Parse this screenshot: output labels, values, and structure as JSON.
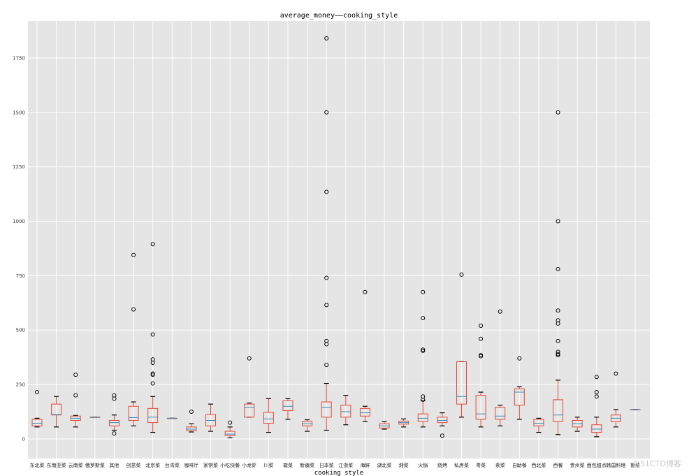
{
  "chart_data": {
    "type": "boxplot",
    "title": "average_money——cooking_style",
    "xlabel": "cooking style",
    "ylabel": "",
    "ylim": [
      -90,
      1920
    ],
    "yticks": [
      0,
      250,
      500,
      750,
      1000,
      1250,
      1500,
      1750
    ],
    "grid": true,
    "colors": {
      "background": "#e5e5e5",
      "grid": "#ffffff",
      "box": "#e24a33",
      "median": "#348abd",
      "whisker": "#000000",
      "flier": "#000000"
    },
    "categories": [
      "东北菜",
      "东南亚菜",
      "云南菜",
      "俄罗斯菜",
      "其他",
      "创意菜",
      "北京菜",
      "台湾菜",
      "咖啡厅",
      "家常菜",
      "小吃快餐",
      "小龙虾",
      "川菜",
      "徽菜",
      "新疆菜",
      "日本菜",
      "江浙菜",
      "海鲜",
      "湖北菜",
      "湘菜",
      "火锅",
      "烧烤",
      "私房菜",
      "粤菜",
      "素菜",
      "自助餐",
      "西北菜",
      "西餐",
      "贵州菜",
      "面包甜点",
      "韩国料理",
      "鲁菜"
    ],
    "boxes": [
      {
        "q1": 60,
        "median": 72,
        "q3": 90,
        "low": 55,
        "high": 95,
        "fliers": [
          215
        ]
      },
      {
        "q1": 110,
        "median": 112,
        "q3": 160,
        "low": 55,
        "high": 195,
        "fliers": []
      },
      {
        "q1": 85,
        "median": 95,
        "q3": 105,
        "low": 55,
        "high": 108,
        "fliers": [
          200,
          295
        ]
      },
      {
        "q1": 100,
        "median": 100,
        "q3": 100,
        "low": 100,
        "high": 100,
        "fliers": []
      },
      {
        "q1": 60,
        "median": 75,
        "q3": 85,
        "low": 40,
        "high": 110,
        "fliers": [
          25,
          185,
          200
        ]
      },
      {
        "q1": 85,
        "median": 98,
        "q3": 150,
        "low": 60,
        "high": 170,
        "fliers": [
          595,
          845
        ]
      },
      {
        "q1": 75,
        "median": 100,
        "q3": 140,
        "low": 30,
        "high": 195,
        "fliers": [
          255,
          295,
          300,
          350,
          365,
          480,
          895
        ]
      },
      {
        "q1": 95,
        "median": 95,
        "q3": 95,
        "low": 95,
        "high": 95,
        "fliers": []
      },
      {
        "q1": 38,
        "median": 45,
        "q3": 55,
        "low": 32,
        "high": 70,
        "fliers": [
          125
        ]
      },
      {
        "q1": 60,
        "median": 85,
        "q3": 112,
        "low": 35,
        "high": 160,
        "fliers": []
      },
      {
        "q1": 15,
        "median": 22,
        "q3": 35,
        "low": 5,
        "high": 55,
        "fliers": [
          75
        ]
      },
      {
        "q1": 100,
        "median": 145,
        "q3": 160,
        "low": 100,
        "high": 165,
        "fliers": [
          370
        ]
      },
      {
        "q1": 72,
        "median": 92,
        "q3": 122,
        "low": 30,
        "high": 185,
        "fliers": []
      },
      {
        "q1": 130,
        "median": 150,
        "q3": 175,
        "low": 90,
        "high": 185,
        "fliers": []
      },
      {
        "q1": 60,
        "median": 70,
        "q3": 80,
        "low": 35,
        "high": 88,
        "fliers": []
      },
      {
        "q1": 100,
        "median": 145,
        "q3": 170,
        "low": 40,
        "high": 255,
        "fliers": [
          340,
          435,
          450,
          615,
          740,
          1135,
          1500,
          1840
        ]
      },
      {
        "q1": 100,
        "median": 125,
        "q3": 155,
        "low": 65,
        "high": 200,
        "fliers": []
      },
      {
        "q1": 105,
        "median": 120,
        "q3": 140,
        "low": 80,
        "high": 150,
        "fliers": [
          675
        ]
      },
      {
        "q1": 50,
        "median": 60,
        "q3": 70,
        "low": 45,
        "high": 80,
        "fliers": []
      },
      {
        "q1": 68,
        "median": 75,
        "q3": 82,
        "low": 55,
        "high": 92,
        "fliers": []
      },
      {
        "q1": 80,
        "median": 95,
        "q3": 115,
        "low": 55,
        "high": 175,
        "fliers": [
          180,
          195,
          405,
          410,
          555,
          675
        ]
      },
      {
        "q1": 75,
        "median": 85,
        "q3": 100,
        "low": 60,
        "high": 120,
        "fliers": [
          15
        ]
      },
      {
        "q1": 160,
        "median": 195,
        "q3": 355,
        "low": 100,
        "high": 355,
        "fliers": [
          755
        ]
      },
      {
        "q1": 90,
        "median": 115,
        "q3": 200,
        "low": 55,
        "high": 215,
        "fliers": [
          380,
          385,
          460,
          520
        ]
      },
      {
        "q1": 90,
        "median": 105,
        "q3": 145,
        "low": 60,
        "high": 155,
        "fliers": [
          585
        ]
      },
      {
        "q1": 155,
        "median": 215,
        "q3": 230,
        "low": 90,
        "high": 240,
        "fliers": [
          370
        ]
      },
      {
        "q1": 60,
        "median": 72,
        "q3": 90,
        "low": 30,
        "high": 95,
        "fliers": []
      },
      {
        "q1": 80,
        "median": 110,
        "q3": 180,
        "low": 20,
        "high": 270,
        "fliers": [
          385,
          390,
          400,
          450,
          530,
          545,
          590,
          780,
          1000,
          1500
        ]
      },
      {
        "q1": 55,
        "median": 70,
        "q3": 85,
        "low": 35,
        "high": 100,
        "fliers": []
      },
      {
        "q1": 30,
        "median": 45,
        "q3": 65,
        "low": 10,
        "high": 100,
        "fliers": [
          195,
          215,
          285
        ]
      },
      {
        "q1": 80,
        "median": 95,
        "q3": 110,
        "low": 55,
        "high": 135,
        "fliers": [
          300
        ]
      },
      {
        "q1": 135,
        "median": 135,
        "q3": 135,
        "low": 135,
        "high": 135,
        "fliers": []
      }
    ]
  },
  "watermark": "@51CTO博客"
}
